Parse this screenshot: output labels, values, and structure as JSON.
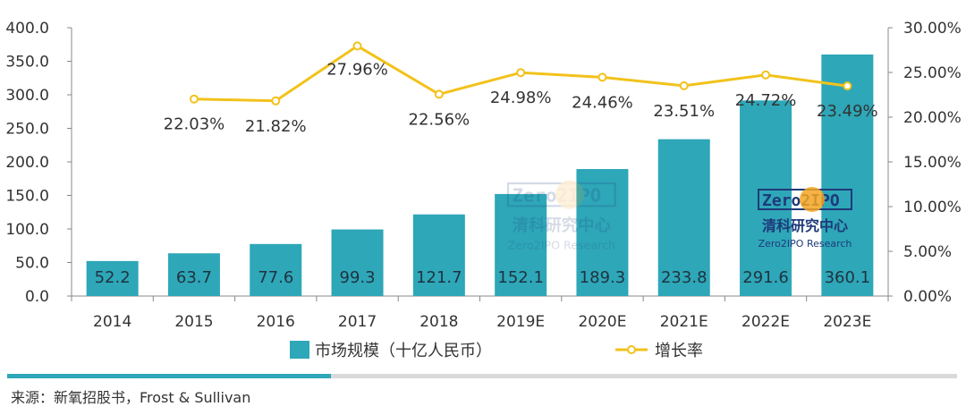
{
  "chart_data": {
    "type": "bar+line",
    "categories": [
      "2014",
      "2015",
      "2016",
      "2017",
      "2018",
      "2019E",
      "2020E",
      "2021E",
      "2022E",
      "2023E"
    ],
    "series": [
      {
        "name": "市场规模（十亿人民币）",
        "type": "bar",
        "axis": "left",
        "values": [
          52.2,
          63.7,
          77.6,
          99.3,
          121.7,
          152.1,
          189.3,
          233.8,
          291.6,
          360.1
        ],
        "labels": [
          "52.2",
          "63.7",
          "77.6",
          "99.3",
          "121.7",
          "152.1",
          "189.3",
          "233.8",
          "291.6",
          "360.1"
        ]
      },
      {
        "name": "增长率",
        "type": "line",
        "axis": "right",
        "values": [
          null,
          22.03,
          21.82,
          27.96,
          22.56,
          24.98,
          24.46,
          23.51,
          24.72,
          23.49
        ],
        "labels": [
          "",
          "22.03%",
          "21.82%",
          "27.96%",
          "22.56%",
          "24.98%",
          "24.46%",
          "23.51%",
          "24.72%",
          "23.49%"
        ]
      }
    ],
    "y_left": {
      "ylim": [
        0,
        400
      ],
      "ticks": [
        "0.0",
        "50.0",
        "100.0",
        "150.0",
        "200.0",
        "250.0",
        "300.0",
        "350.0",
        "400.0"
      ]
    },
    "y_right": {
      "ylim": [
        0,
        30
      ],
      "ticks": [
        "0.00%",
        "5.00%",
        "10.00%",
        "15.00%",
        "20.00%",
        "25.00%",
        "30.00%"
      ]
    },
    "grid": false,
    "legend": "bottom-center",
    "colors": {
      "bar": "#2ea7b8",
      "line": "#f2c21b",
      "marker_fill": "#ffffff",
      "axis": "#888888",
      "divider_accent": "#2ea7b8",
      "divider": "#d9d9d9"
    }
  },
  "watermark": {
    "brand": "Zero2IPO",
    "line1": "清科研究中心",
    "line2": "Zero2IPO Research"
  },
  "source": "来源：新氧招股书，Frost & Sullivan"
}
